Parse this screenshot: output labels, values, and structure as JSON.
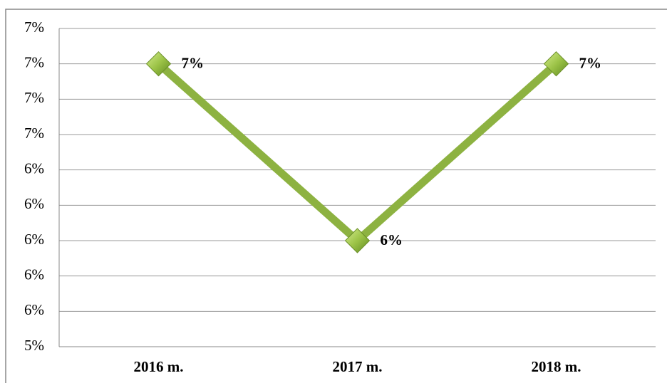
{
  "chart_data": {
    "type": "line",
    "categories": [
      "2016 m.",
      "2017 m.",
      "2018 m."
    ],
    "series": [
      {
        "color": "#8db241",
        "values": [
          7,
          6,
          7
        ],
        "value_labels": [
          "7%",
          "6%",
          "7%"
        ]
      }
    ],
    "ylim": [
      5.4,
      7.2
    ],
    "yticks": [
      {
        "value": 5.4,
        "label": "5%"
      },
      {
        "value": 5.6,
        "label": "6%"
      },
      {
        "value": 5.8,
        "label": "6%"
      },
      {
        "value": 6,
        "label": "6%"
      },
      {
        "value": 6.2,
        "label": "6%"
      },
      {
        "value": 6.4,
        "label": "6%"
      },
      {
        "value": 6.6,
        "label": "7%"
      },
      {
        "value": 6.8,
        "label": "7%"
      },
      {
        "value": 7,
        "label": "7%"
      },
      {
        "value": 7.2,
        "label": "7%"
      }
    ],
    "grid": true
  }
}
